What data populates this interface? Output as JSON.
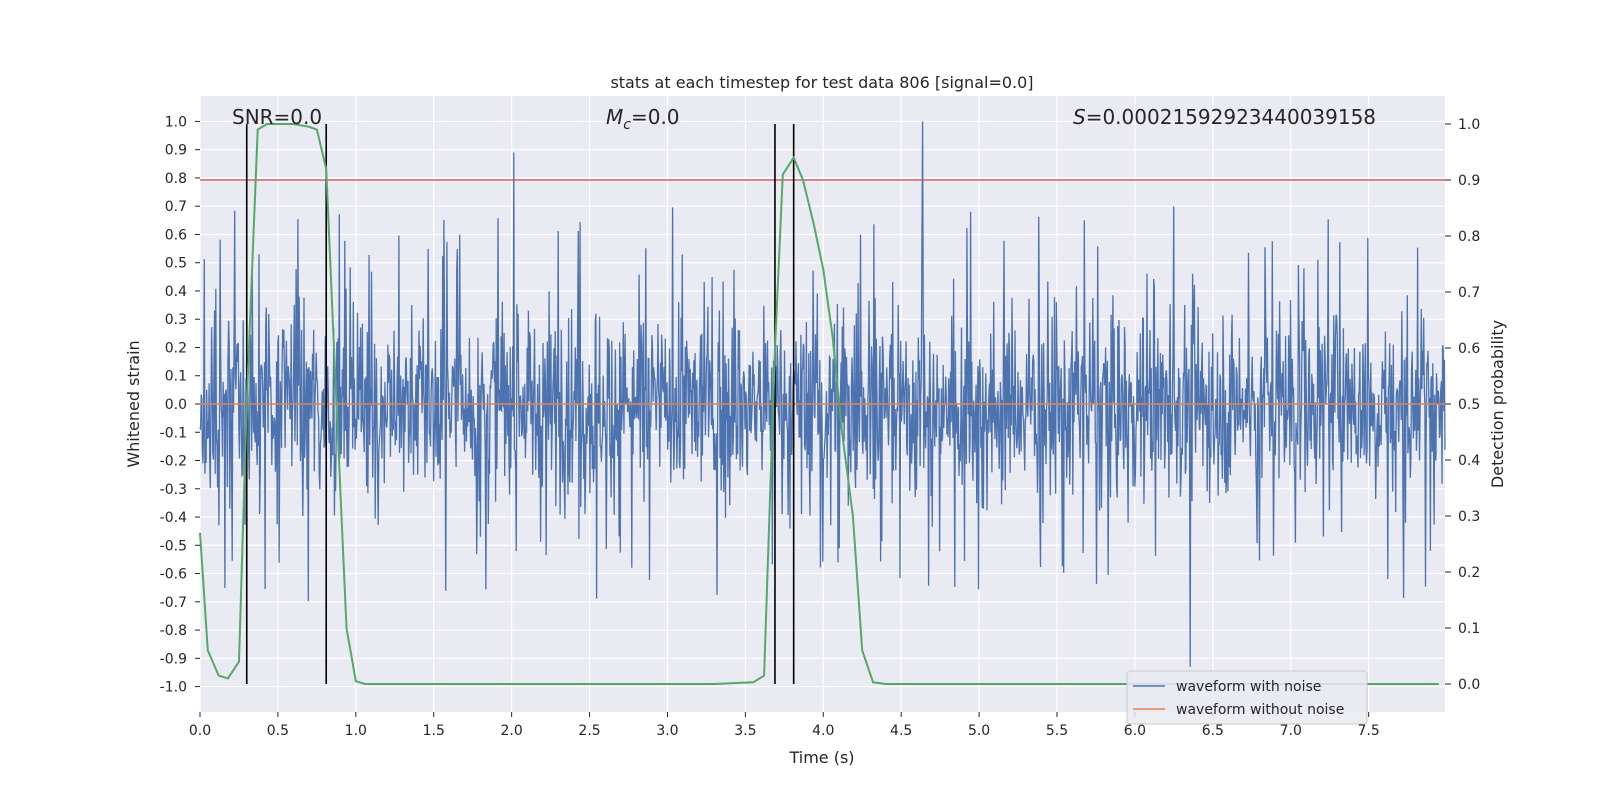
{
  "chart_data": {
    "type": "line",
    "title": "stats at each timestep for test data 806 [signal=0.0]",
    "xlabel": "Time (s)",
    "ylabel": "Whitened strain",
    "y2label": "Detection probability",
    "xlim": [
      0.0,
      7.99
    ],
    "ylim": [
      -1.09,
      1.09
    ],
    "y2lim": [
      -0.05,
      1.05
    ],
    "x_ticks": [
      "0.0",
      "0.5",
      "1.0",
      "1.5",
      "2.0",
      "2.5",
      "3.0",
      "3.5",
      "4.0",
      "4.5",
      "5.0",
      "5.5",
      "6.0",
      "6.5",
      "7.0",
      "7.5"
    ],
    "y_ticks": [
      "1.0",
      "0.9",
      "0.8",
      "0.7",
      "0.6",
      "0.5",
      "0.4",
      "0.3",
      "0.2",
      "0.1",
      "0.0",
      "-0.1",
      "-0.2",
      "-0.3",
      "-0.4",
      "-0.5",
      "-0.6",
      "-0.7",
      "-0.8",
      "-0.9",
      "-1.0"
    ],
    "y2_ticks": [
      "1.0",
      "0.9",
      "0.8",
      "0.7",
      "0.6",
      "0.5",
      "0.4",
      "0.3",
      "0.2",
      "0.1",
      "0.0"
    ],
    "annotations": {
      "snr": "SNR=0.0",
      "mc_symbol": "M",
      "mc_sub": "c",
      "mc_value": "=0.0",
      "s_symbol": "S",
      "s_value": "=0.0002159292344003915​8"
    },
    "legend": {
      "noise_label": "waveform with noise",
      "clean_label": "waveform without noise",
      "placement": "lower-right"
    },
    "threshold_line": {
      "y2": 0.9,
      "color": "#c44e52"
    },
    "vertical_lines_x": [
      0.3,
      0.81,
      3.69,
      3.81
    ],
    "detection_probability": {
      "x": [
        0.0,
        0.05,
        0.12,
        0.18,
        0.25,
        0.3,
        0.37,
        0.43,
        0.5,
        0.6,
        0.7,
        0.75,
        0.81,
        0.86,
        0.94,
        1.0,
        1.06,
        1.2,
        1.5,
        2.0,
        2.5,
        3.0,
        3.3,
        3.55,
        3.62,
        3.69,
        3.74,
        3.81,
        3.87,
        3.94,
        4.0,
        4.06,
        4.12,
        4.19,
        4.25,
        4.32,
        4.4,
        4.6,
        5.0,
        6.0,
        7.0,
        7.95
      ],
      "y": [
        0.27,
        0.06,
        0.015,
        0.01,
        0.04,
        0.5,
        0.99,
        1.0,
        1.0,
        1.0,
        0.995,
        0.99,
        0.92,
        0.6,
        0.1,
        0.005,
        0.0,
        0.0,
        0.0,
        0.0,
        0.0,
        0.0,
        0.0,
        0.003,
        0.015,
        0.6,
        0.91,
        0.94,
        0.9,
        0.82,
        0.74,
        0.62,
        0.45,
        0.3,
        0.06,
        0.003,
        0.0,
        0.0,
        0.0,
        0.0,
        0.0,
        0.0
      ]
    },
    "waveform_with_noise": {
      "samples": 2048,
      "core_amplitude": 0.3,
      "max_peak": 1.0,
      "min_peak": -0.93,
      "color": "#4c72b0"
    },
    "waveform_without_noise": {
      "value": 0.0,
      "color": "#dd8452"
    },
    "probability_color": "#55a868"
  }
}
